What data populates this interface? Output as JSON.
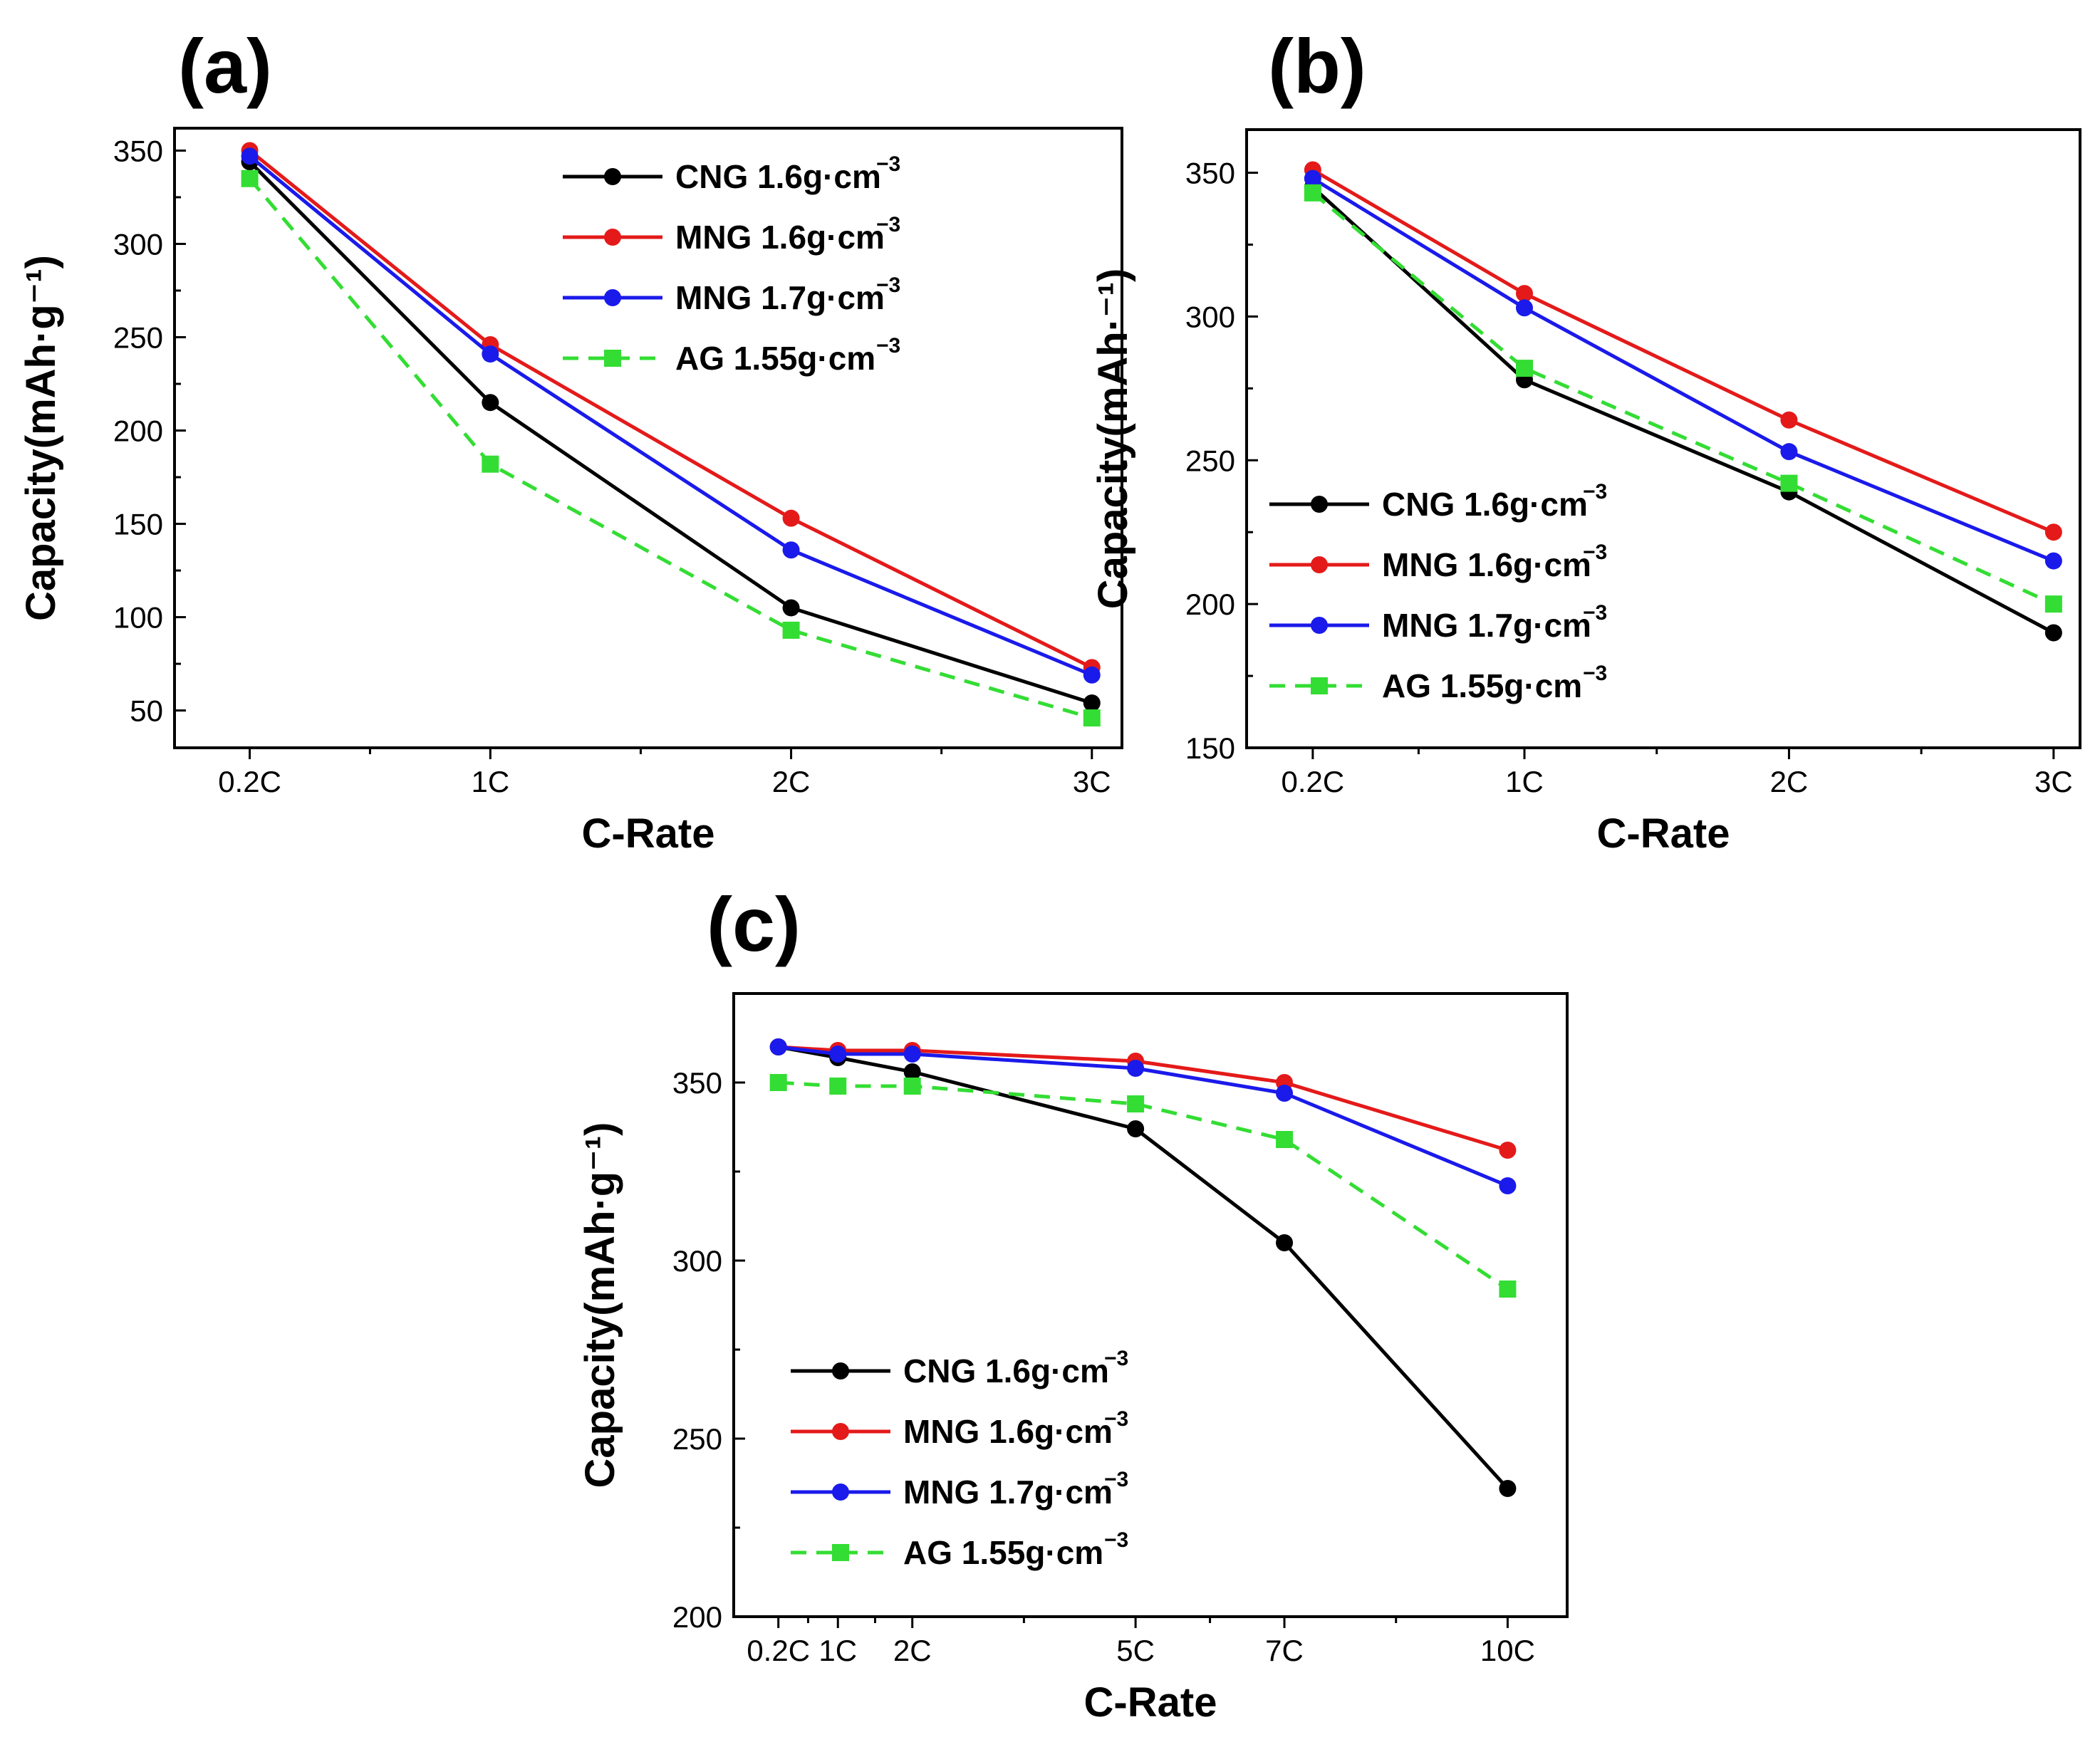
{
  "figure": {
    "panels": [
      {
        "id": "a",
        "label": "(a)"
      },
      {
        "id": "b",
        "label": "(b)"
      },
      {
        "id": "c",
        "label": "(c)"
      }
    ]
  },
  "chart_data": [
    {
      "panel": "(a)",
      "type": "line",
      "title": "",
      "xlabel": "C-Rate",
      "ylabel": "Capacity(mAh·g⁻¹)",
      "categories": [
        "0.2C",
        "1C",
        "2C",
        "3C"
      ],
      "x": [
        0.2,
        1,
        2,
        3
      ],
      "xlim": [
        -0.05,
        3.1
      ],
      "ylim": [
        30,
        362
      ],
      "yticks": [
        50,
        100,
        150,
        200,
        250,
        300,
        350
      ],
      "legend_position": "top-right",
      "series": [
        {
          "name": "CNG 1.6g·cm",
          "sup": "−3",
          "color": "#000000",
          "style": "solid",
          "marker": "circle",
          "values": [
            344,
            215,
            105,
            54
          ]
        },
        {
          "name": "MNG 1.6g·cm",
          "sup": "−3",
          "color": "#e41a1a",
          "style": "solid",
          "marker": "circle",
          "values": [
            350,
            246,
            153,
            73
          ]
        },
        {
          "name": "MNG 1.7g·cm",
          "sup": "−3",
          "color": "#1a1aeb",
          "style": "solid",
          "marker": "circle",
          "values": [
            347,
            241,
            136,
            69
          ]
        },
        {
          "name": "AG 1.55g·cm",
          "sup": "−3",
          "color": "#33dd33",
          "style": "dashed",
          "marker": "square",
          "values": [
            335,
            182,
            93,
            46
          ]
        }
      ]
    },
    {
      "panel": "(b)",
      "type": "line",
      "title": "",
      "xlabel": "C-Rate",
      "ylabel": "Capacity(mAh·⁻¹)",
      "categories": [
        "0.2C",
        "1C",
        "2C",
        "3C"
      ],
      "x": [
        0.2,
        1,
        2,
        3
      ],
      "xlim": [
        -0.05,
        3.1
      ],
      "ylim": [
        150,
        365
      ],
      "yticks": [
        150,
        200,
        250,
        300,
        350
      ],
      "legend_position": "bottom-left",
      "series": [
        {
          "name": "CNG 1.6g·cm",
          "sup": "−3",
          "color": "#000000",
          "style": "solid",
          "marker": "circle",
          "values": [
            345,
            278,
            239,
            190
          ]
        },
        {
          "name": "MNG 1.6g·cm",
          "sup": "−3",
          "color": "#e41a1a",
          "style": "solid",
          "marker": "circle",
          "values": [
            351,
            308,
            264,
            225
          ]
        },
        {
          "name": "MNG 1.7g·cm",
          "sup": "−3",
          "color": "#1a1aeb",
          "style": "solid",
          "marker": "circle",
          "values": [
            348,
            303,
            253,
            215
          ]
        },
        {
          "name": "AG 1.55g·cm",
          "sup": "−3",
          "color": "#33dd33",
          "style": "dashed",
          "marker": "square",
          "values": [
            343,
            282,
            242,
            200
          ]
        }
      ]
    },
    {
      "panel": "(c)",
      "type": "line",
      "title": "",
      "xlabel": "C-Rate",
      "ylabel": "Capacity(mAh·g⁻¹)",
      "categories": [
        "0.2C",
        "1C",
        "2C",
        "5C",
        "7C",
        "10C"
      ],
      "x": [
        0.2,
        1,
        2,
        5,
        7,
        10
      ],
      "xlim": [
        -0.4,
        10.8
      ],
      "ylim": [
        200,
        375
      ],
      "yticks": [
        200,
        250,
        300,
        350
      ],
      "legend_position": "bottom-left",
      "series": [
        {
          "name": "CNG 1.6g·cm",
          "sup": "−3",
          "color": "#000000",
          "style": "solid",
          "marker": "circle",
          "values": [
            360,
            357,
            353,
            337,
            305,
            236
          ]
        },
        {
          "name": "MNG 1.6g·cm",
          "sup": "−3",
          "color": "#e41a1a",
          "style": "solid",
          "marker": "circle",
          "values": [
            360,
            359,
            359,
            356,
            350,
            331
          ]
        },
        {
          "name": "MNG 1.7g·cm",
          "sup": "−3",
          "color": "#1a1aeb",
          "style": "solid",
          "marker": "circle",
          "values": [
            360,
            358,
            358,
            354,
            347,
            321
          ]
        },
        {
          "name": "AG 1.55g·cm",
          "sup": "−3",
          "color": "#33dd33",
          "style": "dashed",
          "marker": "square",
          "values": [
            350,
            349,
            349,
            344,
            334,
            292
          ]
        }
      ]
    }
  ]
}
